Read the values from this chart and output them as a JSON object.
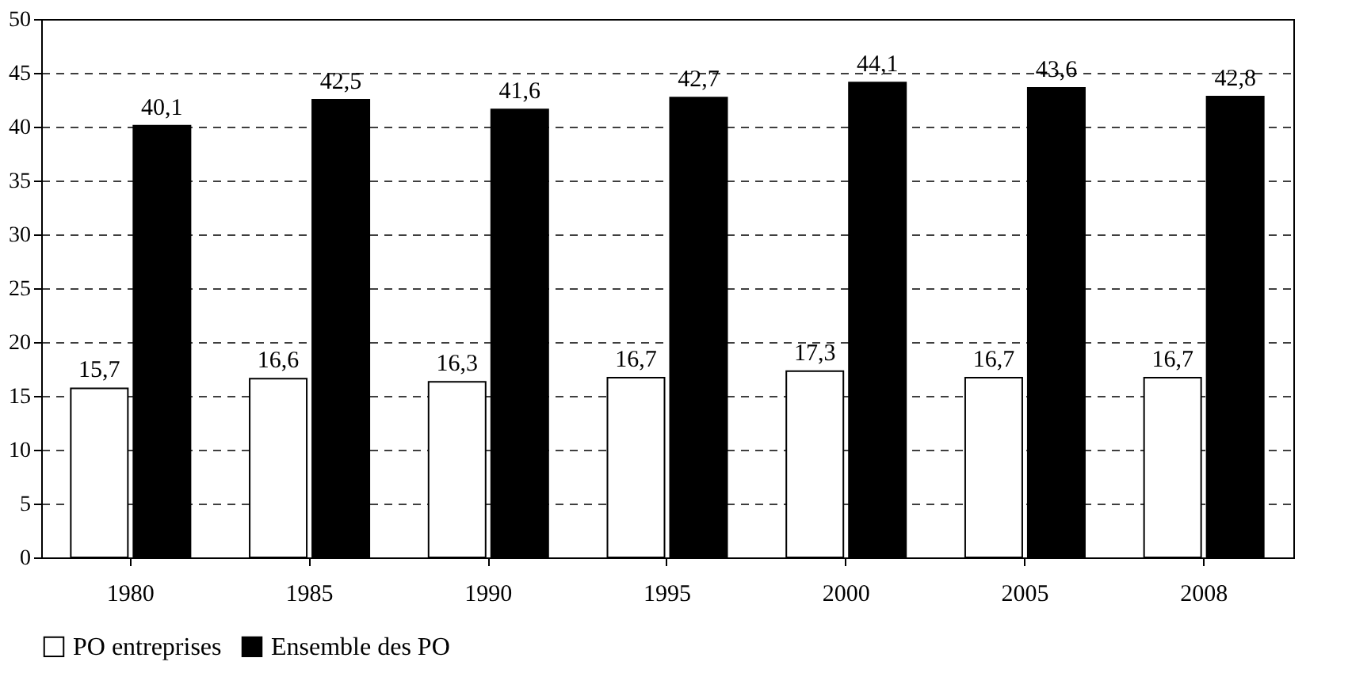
{
  "chart_data": {
    "type": "bar",
    "categories": [
      "1980",
      "1985",
      "1990",
      "1995",
      "2000",
      "2005",
      "2008"
    ],
    "series": [
      {
        "name": "PO entreprises",
        "color": "#ffffff",
        "values": [
          15.7,
          16.6,
          16.3,
          16.7,
          17.3,
          16.7,
          16.7
        ],
        "value_labels": [
          "15,7",
          "16,6",
          "16,3",
          "16,7",
          "17,3",
          "16,7",
          "16,7"
        ]
      },
      {
        "name": "Ensemble des PO",
        "color": "#000000",
        "values": [
          40.1,
          42.5,
          41.6,
          42.7,
          44.1,
          43.6,
          42.8
        ],
        "value_labels": [
          "40,1",
          "42,5",
          "41,6",
          "42,7",
          "44,1",
          "43,6",
          "42,8"
        ]
      }
    ],
    "ylim": [
      0,
      50
    ],
    "yticks": [
      0,
      5,
      10,
      15,
      20,
      25,
      30,
      35,
      40,
      45,
      50
    ],
    "grid": "y",
    "legend": "bottom"
  }
}
